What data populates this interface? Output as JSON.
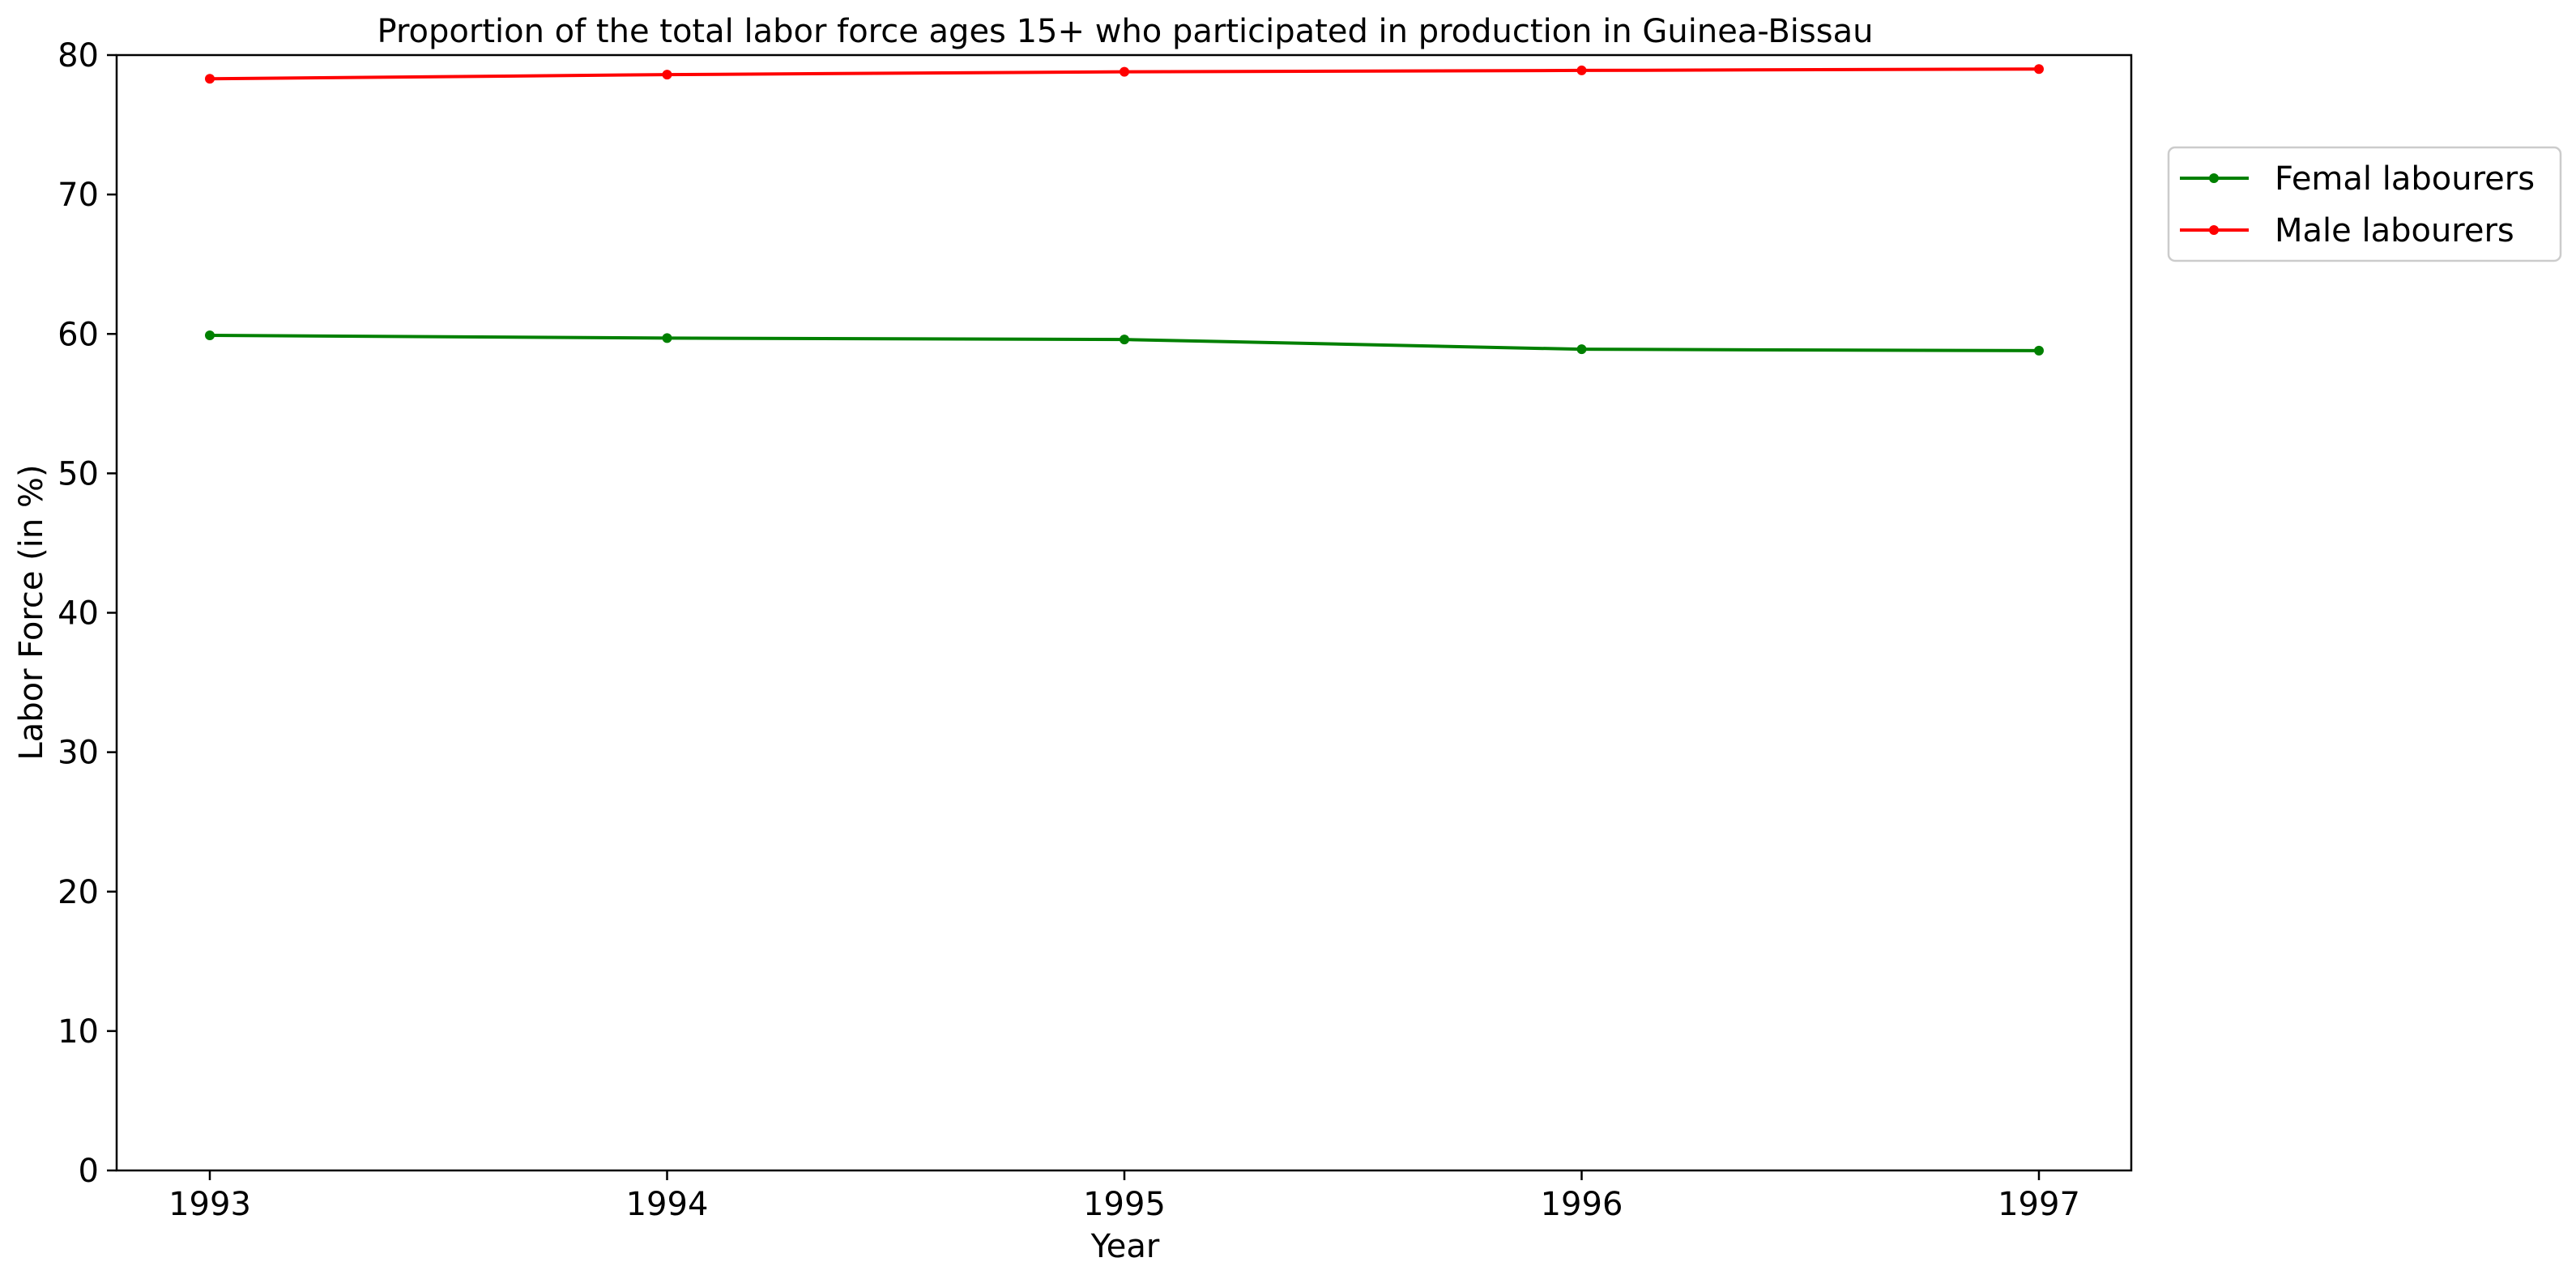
{
  "chart_data": {
    "type": "line",
    "title": "Proportion of the total labor force ages 15+ who participated in production in Guinea-Bissau",
    "xlabel": "Year",
    "ylabel": "Labor Force (in %)",
    "x": [
      "1993",
      "1994",
      "1995",
      "1996",
      "1997"
    ],
    "ylim": [
      0,
      80
    ],
    "yticks": [
      "0",
      "10",
      "20",
      "30",
      "40",
      "50",
      "60",
      "70",
      "80"
    ],
    "grid": false,
    "legend_position": "outside-top-right",
    "series": [
      {
        "name": "Femal labourers",
        "color": "#008000",
        "values": [
          59.9,
          59.7,
          59.6,
          58.9,
          58.8
        ]
      },
      {
        "name": "Male labourers",
        "color": "#ff0000",
        "values": [
          78.3,
          78.6,
          78.8,
          78.9,
          79.0
        ]
      }
    ]
  }
}
